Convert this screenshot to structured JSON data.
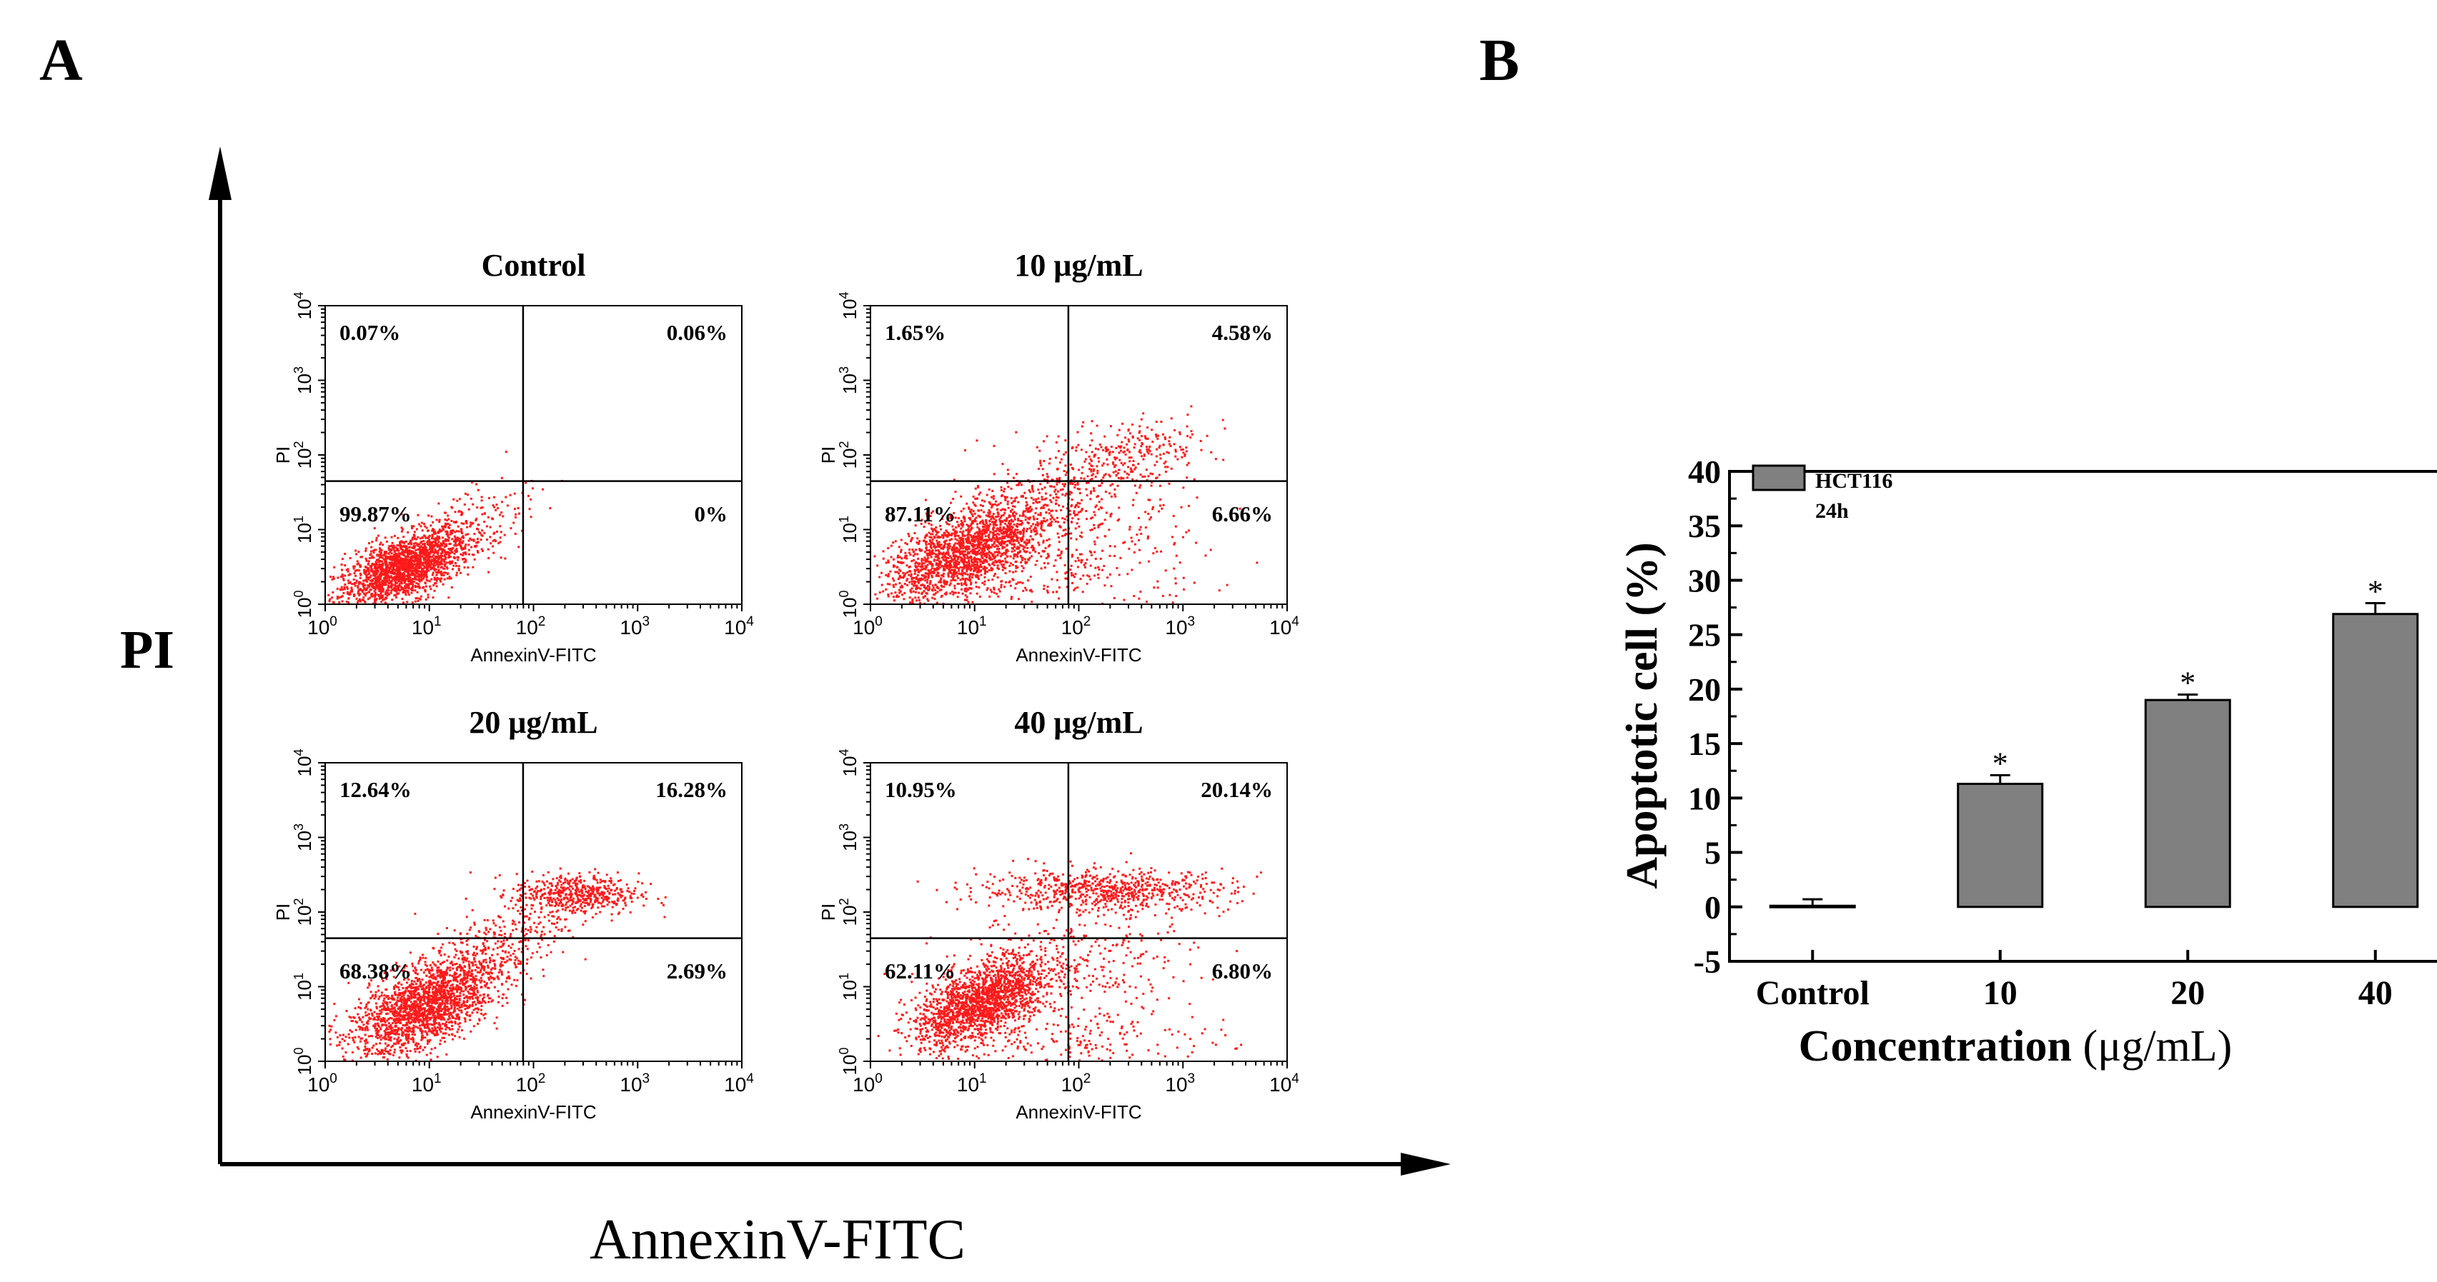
{
  "panel_a": {
    "label": "A",
    "y_axis_label": "PI",
    "x_axis_label": "AnnexinV-FITC",
    "plots": [
      {
        "title": "Control",
        "quadrants": {
          "ul": "0.07%",
          "ur": "0.06%",
          "ll": "99.87%",
          "lr": "0%"
        }
      },
      {
        "title": "10 μg/mL",
        "quadrants": {
          "ul": "1.65%",
          "ur": "4.58%",
          "ll": "87.11%",
          "lr": "6.66%"
        }
      },
      {
        "title": "20 μg/mL",
        "quadrants": {
          "ul": "12.64%",
          "ur": "16.28%",
          "ll": "68.38%",
          "lr": "2.69%"
        }
      },
      {
        "title": "40 μg/mL",
        "quadrants": {
          "ul": "10.95%",
          "ur": "20.14%",
          "ll": "62.11%",
          "lr": "6.80%"
        }
      }
    ],
    "plot_x_label": "AnnexinV-FITC",
    "plot_y_label": "PI",
    "log_ticks": [
      "0",
      "1",
      "2",
      "3",
      "4"
    ],
    "colors": {
      "dots": "#ff1a1a",
      "axis": "#000000"
    }
  },
  "chart_data": {
    "type": "bar",
    "panel_label": "B",
    "categories": [
      "Control",
      "10",
      "20",
      "40"
    ],
    "values": [
      0.1,
      11.3,
      19.0,
      26.9
    ],
    "errors": [
      0.6,
      0.8,
      0.5,
      1.0
    ],
    "significance": [
      "",
      "*",
      "*",
      "*"
    ],
    "legend": [
      "HCT116",
      "24h"
    ],
    "xlabel_main": "Concentration",
    "xlabel_unit": "(μg/mL)",
    "ylabel": "Apoptotic cell (%)",
    "ylim": [
      -5,
      40
    ],
    "yticks": [
      -5,
      0,
      5,
      10,
      15,
      20,
      25,
      30,
      35,
      40
    ],
    "bar_color": "#808080"
  }
}
